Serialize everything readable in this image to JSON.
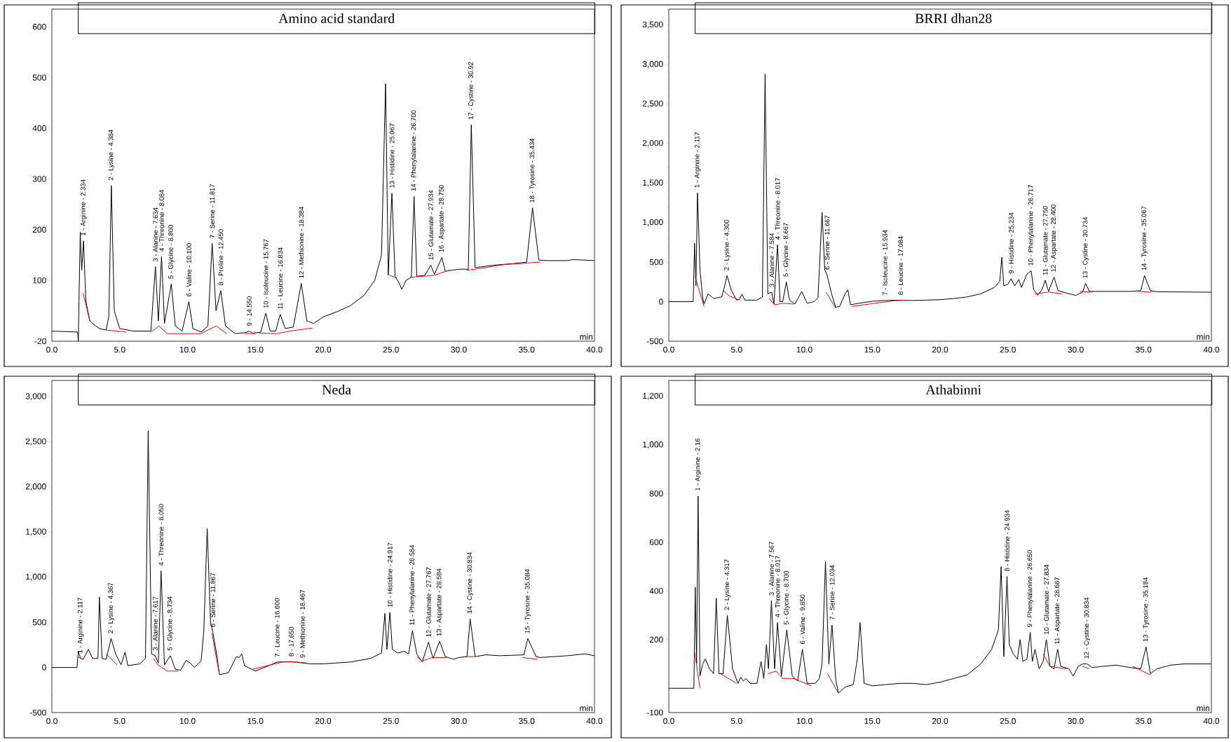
{
  "chart_data": [
    {
      "type": "line",
      "title": "Amino acid standard",
      "xlabel": "min",
      "xlim": [
        0,
        40
      ],
      "ylim": [
        -20,
        635
      ],
      "xticks": [
        {
          "value": 0,
          "label": "0.0"
        },
        {
          "value": 5,
          "label": "5.0"
        },
        {
          "value": 10,
          "label": "10.0"
        },
        {
          "value": 15,
          "label": "15.0"
        },
        {
          "value": 20,
          "label": "20.0"
        },
        {
          "value": 25,
          "label": "25.0"
        },
        {
          "value": 30,
          "label": "30.0"
        },
        {
          "value": 35,
          "label": "35.0"
        },
        {
          "value": 40,
          "label": "40.0"
        }
      ],
      "yticks": [
        -20,
        100,
        200,
        300,
        400,
        500,
        600
      ],
      "series": [
        {
          "color": "#000000",
          "x": [
            0,
            1.9,
            1.95,
            2.0,
            2.09,
            2.2,
            2.334,
            2.5,
            2.8,
            3.0,
            3.5,
            4.0,
            4.2,
            4.384,
            4.6,
            5.0,
            6,
            7.3,
            7.634,
            7.85,
            8.084,
            8.3,
            8.8,
            9.1,
            9.6,
            10.1,
            10.4,
            11,
            11.5,
            11.817,
            12.1,
            12.45,
            12.8,
            13.5,
            14.3,
            14.55,
            14.8,
            15.4,
            15.767,
            16.1,
            16.5,
            16.834,
            17.2,
            17.8,
            18.384,
            18.8,
            19.3,
            20,
            21,
            22,
            23,
            23.8,
            24.3,
            24.6,
            24.8,
            25.067,
            25.3,
            25.6,
            25.8,
            26.1,
            26.5,
            26.7,
            26.9,
            27.5,
            27.934,
            28.2,
            28.75,
            29.0,
            30,
            30.7,
            30.92,
            31.2,
            32,
            33,
            34,
            35,
            35.434,
            35.9,
            36.5,
            38,
            38.4,
            40
          ],
          "values": [
            0,
            -2,
            -20,
            60,
            195,
            120,
            178,
            60,
            20,
            15,
            5,
            2,
            30,
            287,
            40,
            5,
            0,
            0,
            127,
            20,
            147,
            15,
            93,
            10,
            0,
            58,
            5,
            -2,
            10,
            173,
            40,
            80,
            10,
            -5,
            -3,
            0,
            -4,
            -2,
            35,
            0,
            0,
            33,
            5,
            8,
            94,
            20,
            15,
            28,
            38,
            50,
            70,
            100,
            150,
            488,
            110,
            272,
            108,
            95,
            82,
            100,
            106,
            266,
            108,
            110,
            130,
            112,
            145,
            118,
            122,
            122,
            407,
            125,
            128,
            131,
            133,
            136,
            243,
            140,
            139,
            139,
            141,
            139
          ]
        },
        {
          "color": "#ff0000",
          "x": [
            2.3,
            2.8,
            3.4,
            4.0,
            5.5,
            6.4,
            7.3,
            7.9,
            8.5,
            9.7,
            11,
            12.1,
            12.9,
            13.6,
            14.2,
            15,
            15.2,
            15.3,
            16.6,
            17.8,
            19.2,
            22,
            24.9,
            25.4,
            26,
            26.4,
            28.2,
            29.3,
            30,
            30.6,
            31.2,
            33.3,
            36
          ],
          "values": [
            75,
            20,
            null,
            2,
            -2,
            null,
            -2,
            10,
            -5,
            -5,
            -5,
            10,
            -5,
            null,
            -5,
            -5,
            null,
            -4,
            -5,
            1,
            6,
            null,
            110,
            105,
            null,
            106,
            110,
            120,
            null,
            120,
            122,
            131,
            136
          ]
        }
      ],
      "annotations": [
        {
          "text": "1 - Arginine - 2.334",
          "x": 2.334,
          "y": 178
        },
        {
          "text": "2 - Lysine - 4.384",
          "x": 4.384,
          "y": 287
        },
        {
          "text": "3 - Alanine - 7.634",
          "x": 7.634,
          "y": 127
        },
        {
          "text": "4 - Threonine - 8.084",
          "x": 8.084,
          "y": 147
        },
        {
          "text": "5 - Glycine - 8.800",
          "x": 8.8,
          "y": 93
        },
        {
          "text": "6 - Valine - 10.100",
          "x": 10.1,
          "y": 58
        },
        {
          "text": "7 - Serine - 11.817",
          "x": 11.817,
          "y": 173
        },
        {
          "text": "8 - Proline - 12.450",
          "x": 12.45,
          "y": 80
        },
        {
          "text": "9 - 14.550",
          "x": 14.55,
          "y": 0
        },
        {
          "text": "10 - Isoleucine - 15.767",
          "x": 15.767,
          "y": 35
        },
        {
          "text": "11 - Leucine - 16.834",
          "x": 16.834,
          "y": 33
        },
        {
          "text": "12 - Methionine - 18.384",
          "x": 18.384,
          "y": 94
        },
        {
          "text": "13 - Histidine - 25.067",
          "x": 25.067,
          "y": 272
        },
        {
          "text": "14 - Phenylalanine - 26.700",
          "x": 26.7,
          "y": 266
        },
        {
          "text": "15 - Glutamate - 27.934",
          "x": 27.934,
          "y": 130
        },
        {
          "text": "16 - Aspartate - 28.750",
          "x": 28.75,
          "y": 145
        },
        {
          "text": "17 - Cystine - 30.92",
          "x": 30.92,
          "y": 407
        },
        {
          "text": "18 - Tyrosine - 35.434",
          "x": 35.434,
          "y": 243
        }
      ]
    },
    {
      "type": "line",
      "title": "BRRI dhan28",
      "xlabel": "min",
      "xlim": [
        0,
        40
      ],
      "ylim": [
        -500,
        3700
      ],
      "xticks": [
        {
          "value": 0,
          "label": "0.0"
        },
        {
          "value": 5,
          "label": "5.0"
        },
        {
          "value": 10,
          "label": "10.0"
        },
        {
          "value": 15,
          "label": "15.0"
        },
        {
          "value": 20,
          "label": "20.0"
        },
        {
          "value": 25,
          "label": "25.0"
        },
        {
          "value": 30,
          "label": "30.0"
        },
        {
          "value": 35,
          "label": "35.0"
        },
        {
          "value": 40,
          "label": "40.0"
        }
      ],
      "yticks": [
        -500,
        0,
        500,
        {
          "value": 1000,
          "label": "1,000"
        },
        {
          "value": 1500,
          "label": "1,500"
        },
        {
          "value": 2000,
          "label": "2,000"
        },
        {
          "value": 2500,
          "label": "2,500"
        },
        {
          "value": 3000,
          "label": "3,000"
        },
        {
          "value": 3500,
          "label": "3,500"
        }
      ],
      "series": [
        {
          "color": "#000000",
          "x": [
            0,
            1.8,
            1.9,
            2.0,
            2.117,
            2.3,
            2.5,
            2.6,
            2.9,
            3.3,
            3.9,
            4.0,
            4.3,
            4.6,
            5.0,
            5.2,
            5.4,
            5.6,
            6.5,
            6.9,
            7.1,
            7.3,
            7.584,
            7.75,
            8.017,
            8.2,
            8.4,
            8.667,
            8.9,
            9.3,
            9.8,
            10.2,
            10.7,
            11.0,
            11.3,
            11.5,
            11.667,
            12.0,
            12.3,
            12.6,
            13.0,
            13.2,
            13.4,
            14,
            15,
            16,
            17,
            18,
            19,
            20,
            21,
            22,
            23,
            24,
            24.4,
            24.55,
            24.7,
            25.0,
            25.234,
            25.5,
            25.8,
            26.0,
            26.4,
            26.717,
            26.9,
            27.2,
            27.5,
            27.75,
            28.0,
            28.4,
            28.7,
            29.5,
            30,
            30.5,
            30.734,
            31,
            32,
            34,
            34.8,
            35.067,
            35.5,
            36,
            40
          ],
          "values": [
            0,
            0,
            740,
            200,
            1375,
            400,
            50,
            -30,
            100,
            40,
            60,
            120,
            330,
            150,
            20,
            30,
            95,
            20,
            20,
            60,
            2880,
            100,
            120,
            -30,
            720,
            0,
            0,
            250,
            20,
            -30,
            130,
            -20,
            0,
            50,
            1130,
            400,
            340,
            100,
            -70,
            -60,
            100,
            150,
            -40,
            -20,
            5,
            15,
            20,
            15,
            20,
            25,
            40,
            60,
            100,
            180,
            260,
            560,
            200,
            220,
            290,
            200,
            280,
            180,
            350,
            390,
            150,
            80,
            150,
            270,
            130,
            310,
            140,
            100,
            80,
            120,
            230,
            130,
            130,
            130,
            140,
            330,
            140,
            125,
            120
          ]
        },
        {
          "color": "#ff0000",
          "x": [
            2,
            2.6,
            3.3,
            4.0,
            4.5,
            5.2,
            6.3,
            7.4,
            7.8,
            8.4,
            9.2,
            10.4,
            11.6,
            12.3,
            12.9,
            13.5,
            16.5,
            17.5,
            22,
            27,
            28,
            29,
            29.7,
            30.3,
            31.2,
            33,
            34.6,
            35.6
          ],
          "values": [
            280,
            -60,
            null,
            140,
            70,
            20,
            null,
            40,
            -40,
            -20,
            -30,
            null,
            120,
            -80,
            null,
            -60,
            10,
            20,
            null,
            100,
            120,
            100,
            null,
            130,
            120,
            null,
            130,
            120
          ]
        }
      ],
      "annotations": [
        {
          "text": "1 - Arginine - 2.117",
          "x": 2.117,
          "y": 1375
        },
        {
          "text": "2 - Lysine - 4.300",
          "x": 4.3,
          "y": 330
        },
        {
          "text": "3 - Alanine - 7.584",
          "x": 7.584,
          "y": 120
        },
        {
          "text": "4 - Threonine - 8.017",
          "x": 8.017,
          "y": 720
        },
        {
          "text": "5 - Glycine - 8.667",
          "x": 8.667,
          "y": 250
        },
        {
          "text": "6 - Serine - 11.667",
          "x": 11.667,
          "y": 340
        },
        {
          "text": "7 - Isoleucine - 15.934",
          "x": 15.934,
          "y": 14
        },
        {
          "text": "8 - Leucine - 17.084",
          "x": 17.084,
          "y": 20
        },
        {
          "text": "9 - Histidine - 25.234",
          "x": 25.234,
          "y": 290
        },
        {
          "text": "10 - Phenylalanine - 26.717",
          "x": 26.717,
          "y": 390
        },
        {
          "text": "11 - Glutamate - 27.750",
          "x": 27.75,
          "y": 270
        },
        {
          "text": "12 - Aspartate - 28.400",
          "x": 28.4,
          "y": 310
        },
        {
          "text": "13 - Cystine - 30.734",
          "x": 30.734,
          "y": 230
        },
        {
          "text": "14 - Tyrosine - 35.067",
          "x": 35.067,
          "y": 330
        }
      ]
    },
    {
      "type": "line",
      "title": "Neda",
      "xlabel": "min",
      "xlim": [
        0,
        40
      ],
      "ylim": [
        -500,
        3180
      ],
      "xticks": [
        {
          "value": 0,
          "label": "0.0"
        },
        {
          "value": 5,
          "label": "5.0"
        },
        {
          "value": 10,
          "label": "10.0"
        },
        {
          "value": 15,
          "label": "15.0"
        },
        {
          "value": 20,
          "label": "20.0"
        },
        {
          "value": 25,
          "label": "25.0"
        },
        {
          "value": 30,
          "label": "30.0"
        },
        {
          "value": 35,
          "label": "35.0"
        },
        {
          "value": 40,
          "label": "40.0"
        }
      ],
      "yticks": [
        -500,
        0,
        500,
        {
          "value": 1000,
          "label": "1,000"
        },
        {
          "value": 1500,
          "label": "1,500"
        },
        {
          "value": 2000,
          "label": "2,000"
        },
        {
          "value": 2500,
          "label": "2,500"
        },
        {
          "value": 3000,
          "label": "3,000"
        }
      ],
      "series": [
        {
          "color": "#000000",
          "x": [
            0,
            1.85,
            1.95,
            2.117,
            2.3,
            2.7,
            3.0,
            3.4,
            3.5,
            3.7,
            4.0,
            4.367,
            4.7,
            5.1,
            5.4,
            5.6,
            6.5,
            6.9,
            7.1,
            7.35,
            7.617,
            7.85,
            8.05,
            8.3,
            8.734,
            9.1,
            9.5,
            9.9,
            10.2,
            10.5,
            11,
            11.2,
            11.45,
            11.7,
            11.867,
            12.2,
            12.35,
            13,
            13.6,
            13.8,
            14.0,
            14.2,
            15,
            16,
            16.6,
            17.65,
            18.467,
            19,
            20,
            22,
            23.5,
            24.3,
            24.55,
            24.7,
            24.917,
            25.1,
            25.5,
            26,
            26.3,
            26.584,
            26.9,
            27.3,
            27.767,
            28.1,
            28.584,
            29,
            29.6,
            30,
            30.6,
            30.834,
            31.2,
            32,
            33,
            34,
            34.8,
            35.084,
            35.7,
            36,
            38,
            39.3,
            40
          ],
          "values": [
            0,
            0,
            180,
            100,
            90,
            200,
            100,
            100,
            780,
            100,
            90,
            320,
            150,
            30,
            170,
            20,
            40,
            100,
            2620,
            150,
            130,
            50,
            1070,
            30,
            130,
            -20,
            -30,
            80,
            50,
            0,
            70,
            400,
            1540,
            500,
            390,
            100,
            -80,
            -60,
            120,
            110,
            150,
            20,
            -40,
            20,
            60,
            65,
            50,
            40,
            40,
            60,
            100,
            160,
            600,
            200,
            610,
            200,
            160,
            180,
            150,
            410,
            150,
            60,
            280,
            100,
            290,
            120,
            90,
            110,
            120,
            540,
            120,
            140,
            130,
            135,
            140,
            320,
            120,
            110,
            130,
            150,
            130
          ]
        },
        {
          "color": "#ff0000",
          "x": [
            1.9,
            2.3,
            3.2,
            4.0,
            4.8,
            6.2,
            7.5,
            7.8,
            8.5,
            9.3,
            10.6,
            11.8,
            12.35,
            13.6,
            14.8,
            17,
            18,
            18.8,
            22,
            26.9,
            27.3,
            28,
            29.1,
            29.8,
            30.6,
            31.2,
            33,
            34.7,
            35.8
          ],
          "values": [
            120,
            90,
            null,
            150,
            30,
            null,
            100,
            30,
            -40,
            -40,
            null,
            380,
            -80,
            null,
            -20,
            60,
            60,
            50,
            null,
            120,
            70,
            110,
            110,
            null,
            120,
            120,
            null,
            110,
            90
          ]
        }
      ],
      "annotations": [
        {
          "text": "1 - Arginine - 2.117",
          "x": 2.117,
          "y": 100
        },
        {
          "text": "2 - Lysine - 4.367",
          "x": 4.367,
          "y": 320
        },
        {
          "text": "3 - Alanine - 7.617",
          "x": 7.617,
          "y": 130
        },
        {
          "text": "4 - Threonine - 8.050",
          "x": 8.05,
          "y": 1070
        },
        {
          "text": "5 - Glycine - 8.734",
          "x": 8.734,
          "y": 130
        },
        {
          "text": "6 - Serine - 11.867",
          "x": 11.867,
          "y": 390
        },
        {
          "text": "7 - Leucine - 16.600",
          "x": 16.6,
          "y": 60
        },
        {
          "text": "8 - 17.650",
          "x": 17.65,
          "y": 65
        },
        {
          "text": "9 - Methionine - 18.467",
          "x": 18.467,
          "y": 50
        },
        {
          "text": "10 - Histidine - 24.917",
          "x": 24.917,
          "y": 610
        },
        {
          "text": "11 - Phenylalanine - 26.584",
          "x": 26.584,
          "y": 410
        },
        {
          "text": "12 - Glutamate - 27.767",
          "x": 27.767,
          "y": 280
        },
        {
          "text": "13 - Aspartate - 28.584",
          "x": 28.584,
          "y": 290
        },
        {
          "text": "14 - Cystine - 30.834",
          "x": 30.834,
          "y": 540
        },
        {
          "text": "15 - Tyrosine - 35.084",
          "x": 35.084,
          "y": 320
        }
      ]
    },
    {
      "type": "line",
      "title": "Athabinni",
      "xlabel": "min",
      "xlim": [
        0,
        40
      ],
      "ylim": [
        -100,
        1265
      ],
      "xticks": [
        {
          "value": 0,
          "label": "0.0"
        },
        {
          "value": 5,
          "label": "5.0"
        },
        {
          "value": 10,
          "label": "10.0"
        },
        {
          "value": 15,
          "label": "15.0"
        },
        {
          "value": 20,
          "label": "20.0"
        },
        {
          "value": 25,
          "label": "25.0"
        },
        {
          "value": 30,
          "label": "30.0"
        },
        {
          "value": 35,
          "label": "35.0"
        },
        {
          "value": 40,
          "label": "40.0"
        }
      ],
      "yticks": [
        -100,
        200,
        400,
        600,
        800,
        {
          "value": 1000,
          "label": "1,000"
        },
        {
          "value": 1200,
          "label": "1,200"
        }
      ],
      "series": [
        {
          "color": "#000000",
          "x": [
            0,
            1.85,
            1.95,
            2.05,
            2.16,
            2.3,
            2.5,
            2.7,
            3.0,
            3.3,
            3.5,
            3.7,
            4.0,
            4.317,
            4.7,
            5.1,
            5.3,
            5.5,
            5.7,
            6.0,
            6.5,
            6.8,
            7.0,
            7.2,
            7.35,
            7.567,
            7.8,
            8.017,
            8.3,
            8.7,
            9.1,
            9.5,
            9.85,
            10.2,
            10.8,
            11.1,
            11.3,
            11.55,
            11.8,
            12.034,
            12.3,
            12.5,
            13,
            13.6,
            13.9,
            14.1,
            14.4,
            15,
            16,
            17,
            18,
            19,
            20,
            21,
            22,
            23,
            23.8,
            24.3,
            24.5,
            24.7,
            24.934,
            25.1,
            25.4,
            25.7,
            25.9,
            26.1,
            26.4,
            26.65,
            26.8,
            27.0,
            27.3,
            27.6,
            27.834,
            28.1,
            28.4,
            28.667,
            28.9,
            29.5,
            29.8,
            30.2,
            30.5,
            30.834,
            31.2,
            32,
            33,
            34,
            34.8,
            35.184,
            35.5,
            36,
            37,
            38,
            40
          ],
          "values": [
            0,
            0,
            415,
            100,
            790,
            50,
            100,
            120,
            80,
            60,
            370,
            60,
            60,
            300,
            80,
            20,
            45,
            30,
            40,
            20,
            20,
            110,
            40,
            180,
            80,
            360,
            80,
            270,
            50,
            240,
            50,
            30,
            160,
            20,
            20,
            40,
            100,
            520,
            100,
            260,
            40,
            -20,
            5,
            15,
            120,
            270,
            20,
            10,
            15,
            20,
            20,
            15,
            25,
            40,
            55,
            100,
            160,
            240,
            500,
            130,
            460,
            180,
            140,
            120,
            200,
            110,
            120,
            230,
            110,
            160,
            80,
            110,
            200,
            90,
            80,
            160,
            90,
            80,
            50,
            90,
            100,
            100,
            85,
            90,
            95,
            85,
            80,
            170,
            60,
            80,
            95,
            100,
            100
          ]
        },
        {
          "color": "#ff0000",
          "x": [
            1.9,
            2.3,
            3.0,
            3.8,
            5.0,
            6.5,
            7.3,
            7.9,
            8.4,
            9.2,
            10.5,
            11.1,
            11.7,
            12.5,
            20,
            27.6,
            28.1,
            29.3,
            29.9,
            30.5,
            31,
            33,
            34.2,
            35.5
          ],
          "values": [
            150,
            0,
            null,
            60,
            20,
            null,
            60,
            70,
            40,
            40,
            10,
            null,
            60,
            -20,
            null,
            140,
            90,
            80,
            null,
            90,
            80,
            null,
            90,
            55
          ]
        }
      ],
      "annotations": [
        {
          "text": "1 - Arginine - 2.16",
          "x": 2.16,
          "y": 790
        },
        {
          "text": "2 - Lysine - 4.317",
          "x": 4.317,
          "y": 300
        },
        {
          "text": "3 - Alanine - 7.567",
          "x": 7.567,
          "y": 360
        },
        {
          "text": "4 - Threonine - 8.017",
          "x": 8.017,
          "y": 270
        },
        {
          "text": "5 - Glycine - 8.700",
          "x": 8.7,
          "y": 240
        },
        {
          "text": "6 - Valine - 9.850",
          "x": 9.85,
          "y": 160
        },
        {
          "text": "7 - Serine - 12.034",
          "x": 12.034,
          "y": 260
        },
        {
          "text": "8 - Histidine - 24.934",
          "x": 24.934,
          "y": 460
        },
        {
          "text": "9 - Phenylalanine - 26.650",
          "x": 26.65,
          "y": 230
        },
        {
          "text": "10 - Glutamate - 27.834",
          "x": 27.834,
          "y": 200
        },
        {
          "text": "11 - Aspartate - 28.667",
          "x": 28.667,
          "y": 160
        },
        {
          "text": "12 - Cystine - 30.834",
          "x": 30.834,
          "y": 100
        },
        {
          "text": "13 - Tyrosine - 35.184",
          "x": 35.184,
          "y": 170
        }
      ]
    }
  ]
}
